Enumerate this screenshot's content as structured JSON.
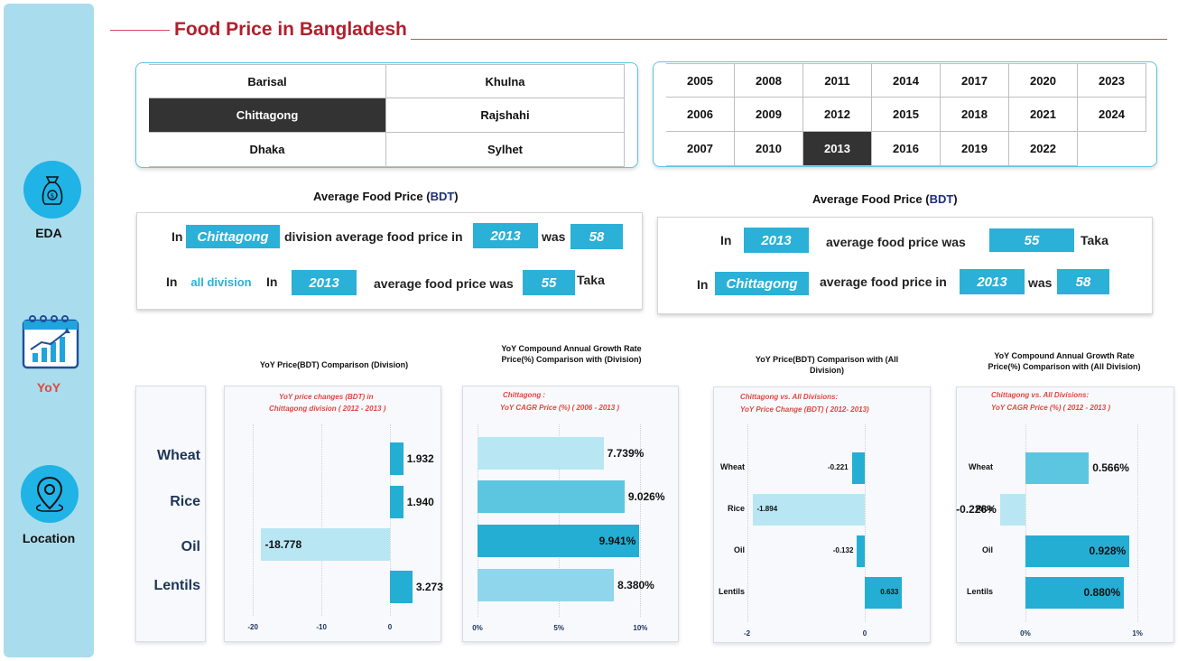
{
  "sidebar": {
    "items": [
      {
        "label": "EDA",
        "icon": "money-bag-icon"
      },
      {
        "label": "YoY",
        "icon": "calendar-chart-icon",
        "color": "#e0473f"
      },
      {
        "label": "Location",
        "icon": "location-pin-icon"
      }
    ]
  },
  "header": {
    "title": "Food Price in Bangladesh"
  },
  "division_slicer": {
    "items": [
      "Barisal",
      "Khulna",
      "Chittagong",
      "Rajshahi",
      "Dhaka",
      "Sylhet"
    ],
    "selected": "Chittagong"
  },
  "year_slicer": {
    "items": [
      "2005",
      "2008",
      "2011",
      "2014",
      "2017",
      "2020",
      "2023",
      "2006",
      "2009",
      "2012",
      "2015",
      "2018",
      "2021",
      "2024",
      "2007",
      "2010",
      "2013",
      "2016",
      "2019",
      "2022"
    ],
    "selected": "2013"
  },
  "summary_left": {
    "title_prefix": "Average Food Price (",
    "title_accent": "BDT",
    "title_suffix": ")",
    "line1": {
      "in": "In",
      "division": "Chittagong",
      "middle": "division average food price in",
      "year": "2013",
      "was": "was",
      "value": "58"
    },
    "line2": {
      "in": "In",
      "scope": "all division",
      "in2": "In",
      "year": "2013",
      "middle": "average food price was",
      "value": "55",
      "unit": "Taka"
    }
  },
  "summary_right": {
    "title_prefix": "Average Food Price (",
    "title_accent": "BDT",
    "title_suffix": ")",
    "line1": {
      "in": "In",
      "year": "2013",
      "middle": "average food price was",
      "value": "55",
      "unit": "Taka"
    },
    "line2": {
      "in": "In",
      "division": "Chittagong",
      "middle": "average food price in",
      "year": "2013",
      "was": "was",
      "value": "58"
    }
  },
  "charts": {
    "c1": {
      "title": "YoY Price(BDT) Comparison (Division)",
      "subtitle1": "YoY price changes (BDT) in",
      "subtitle2": "Chittagong  division (  2012  -  2013  )"
    },
    "c2": {
      "title": "YoY Compound Annual Growth Rate Price(%) Comparison with (Division)",
      "subtitle1": "Chittagong        :",
      "subtitle2": "YoY CAGR Price (%)  (  2006  -  2013  )"
    },
    "c3": {
      "title": "YoY Price(BDT) Comparison with (All Division)",
      "subtitle1": "Chittagong vs. All Divisions:",
      "subtitle2": "YoY Price Change (BDT)    (  2012-  2013)"
    },
    "c4": {
      "title": "YoY Compound Annual Growth Rate Price(%) Comparison with (All Division)",
      "subtitle1": "Chittagong vs. All Divisions:",
      "subtitle2": "YoY CAGR Price (%)  (  2012  -  2013  )"
    }
  },
  "chart_data": [
    {
      "type": "bar",
      "title": "YoY Price(BDT) Comparison (Division)",
      "categories": [
        "Wheat",
        "Rice",
        "Oil",
        "Lentils"
      ],
      "values": [
        1.932,
        1.94,
        -18.778,
        3.273
      ],
      "value_labels": [
        "1.932",
        "1.940",
        "-18.778",
        "3.273"
      ],
      "xlim": [
        -22,
        5
      ],
      "ticks": [
        -20,
        -10,
        0
      ],
      "tick_labels": [
        "-20",
        "-10",
        "0"
      ]
    },
    {
      "type": "bar",
      "title": "YoY Compound Annual Growth Rate Price(%) Comparison with (Division)",
      "categories": [
        "Wheat",
        "Rice",
        "Oil",
        "Lentils"
      ],
      "values": [
        7.739,
        9.026,
        9.941,
        8.38
      ],
      "value_labels": [
        "7.739%",
        "9.026%",
        "9.941%",
        "8.380%"
      ],
      "xlim": [
        0,
        10.2
      ],
      "ticks": [
        0,
        5,
        10
      ],
      "tick_labels": [
        "0%",
        "5%",
        "10%"
      ]
    },
    {
      "type": "bar",
      "title": "YoY Price(BDT) Comparison with (All Division)",
      "categories": [
        "Wheat",
        "Rice",
        "Oil",
        "Lentils"
      ],
      "values": [
        -0.221,
        -1.894,
        -0.132,
        0.633
      ],
      "value_labels": [
        "-0.221",
        "-1.894",
        "-0.132",
        "0.633"
      ],
      "xlim": [
        -2.3,
        0.95
      ],
      "ticks": [
        -2,
        0
      ],
      "tick_labels": [
        "-2",
        "0"
      ]
    },
    {
      "type": "bar",
      "title": "YoY Compound Annual Growth Rate Price(%) Comparison with (All Division)",
      "categories": [
        "Wheat",
        "Rice",
        "Oil",
        "Lentils"
      ],
      "values": [
        0.566,
        -0.226,
        0.928,
        0.88
      ],
      "value_labels": [
        "0.566%",
        "-0.226%",
        "0.928%",
        "0.880%"
      ],
      "xlim": [
        -0.45,
        1.2
      ],
      "ticks": [
        0,
        1
      ],
      "tick_labels": [
        "0%",
        "1%"
      ]
    }
  ],
  "colors": {
    "accent": "#2bb0d8",
    "title": "#b21f2d",
    "selected": "#333333",
    "bar_light": "#b9e6f3",
    "bar_mid": "#5cc6e0",
    "bar_dark": "#24aed4"
  }
}
